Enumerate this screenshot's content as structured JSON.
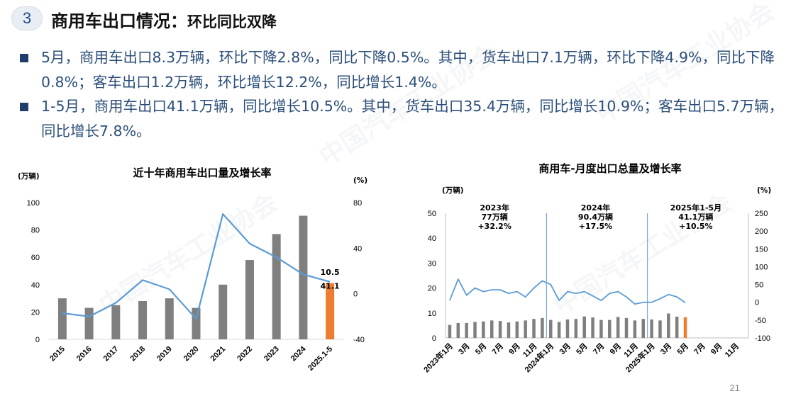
{
  "header": {
    "number": "3",
    "title_main": "商用车出口情况：",
    "title_sub": "环比同比双降"
  },
  "bullets": [
    "5月，商用车出口8.3万辆，环比下降2.8%，同比下降0.5%。其中，货车出口7.1万辆，环比下降4.9%，同比下降0.8%；客车出口1.2万辆，环比增长12.2%，同比增长1.4%。",
    "1-5月，商用车出口41.1万辆，同比增长10.5%。其中，货车出口35.4万辆，同比增长10.9%；客车出口5.7万辆，同比增长7.8%。"
  ],
  "watermark": "中国汽车工业协会",
  "page_number": "21",
  "colors": {
    "bar": "#7f7f7f",
    "bar_highlight": "#ed7d31",
    "line": "#5b9bd5",
    "accent": "#1f3e6c",
    "text_blue": "#2b4e79"
  },
  "chart_data": [
    {
      "type": "bar+line",
      "title": "近十年商用车出口量及增长率",
      "y_left_unit": "(万辆)",
      "y_right_unit": "(%)",
      "categories": [
        "2015",
        "2016",
        "2017",
        "2018",
        "2019",
        "2020",
        "2021",
        "2022",
        "2023",
        "2024",
        "2025.1-5"
      ],
      "bars": [
        30,
        23,
        25,
        28,
        30,
        23,
        40,
        58,
        77,
        90.4,
        41.1
      ],
      "line": [
        -17,
        -20,
        -8,
        12,
        4,
        -22,
        70,
        44,
        32,
        17,
        10.5
      ],
      "ylim_left": [
        0,
        100
      ],
      "yticks_left": [
        0,
        20,
        40,
        60,
        80,
        100
      ],
      "ylim_right": [
        -40,
        80
      ],
      "yticks_right": [
        -40,
        0,
        40,
        80
      ],
      "labels": {
        "bar_last": "41.1",
        "line_last": "10.5"
      }
    },
    {
      "type": "bar+line",
      "title": "商用车-月度出口总量及增长率",
      "y_left_unit": "(万辆)",
      "y_right_unit": "(%)",
      "x_ticks": [
        "2023年1月",
        "3月",
        "5月",
        "7月",
        "9月",
        "11月",
        "2024年1月",
        "3月",
        "5月",
        "7月",
        "9月",
        "11月",
        "2025年1月",
        "3月",
        "5月",
        "7月",
        "9月",
        "11月"
      ],
      "bars": [
        5.2,
        6.0,
        6.0,
        6.4,
        6.6,
        7.0,
        6.8,
        6.2,
        6.6,
        7.0,
        7.6,
        8.0,
        7.2,
        6.4,
        7.4,
        7.6,
        8.6,
        8.2,
        7.2,
        7.2,
        8.4,
        8.0,
        7.0,
        7.6,
        7.4,
        7.0,
        9.8,
        8.5,
        8.3
      ],
      "line": [
        5,
        65,
        20,
        40,
        30,
        35,
        35,
        25,
        30,
        15,
        40,
        60,
        50,
        5,
        30,
        25,
        30,
        18,
        5,
        25,
        30,
        15,
        -5,
        0,
        0,
        10,
        22,
        15,
        -1
      ],
      "ylim_left": [
        0,
        50
      ],
      "yticks_left": [
        0,
        10,
        20,
        30,
        40,
        50
      ],
      "ylim_right": [
        -100,
        250
      ],
      "yticks_right": [
        -100,
        -50,
        0,
        50,
        100,
        150,
        200,
        250
      ],
      "annotations": [
        {
          "lines": [
            "2023年",
            "77万辆",
            "+32.2%"
          ]
        },
        {
          "lines": [
            "2024年",
            "90.4万辆",
            "+17.5%"
          ]
        },
        {
          "lines": [
            "2025年1-5月",
            "41.1万辆",
            "+10.5%"
          ]
        }
      ]
    }
  ]
}
